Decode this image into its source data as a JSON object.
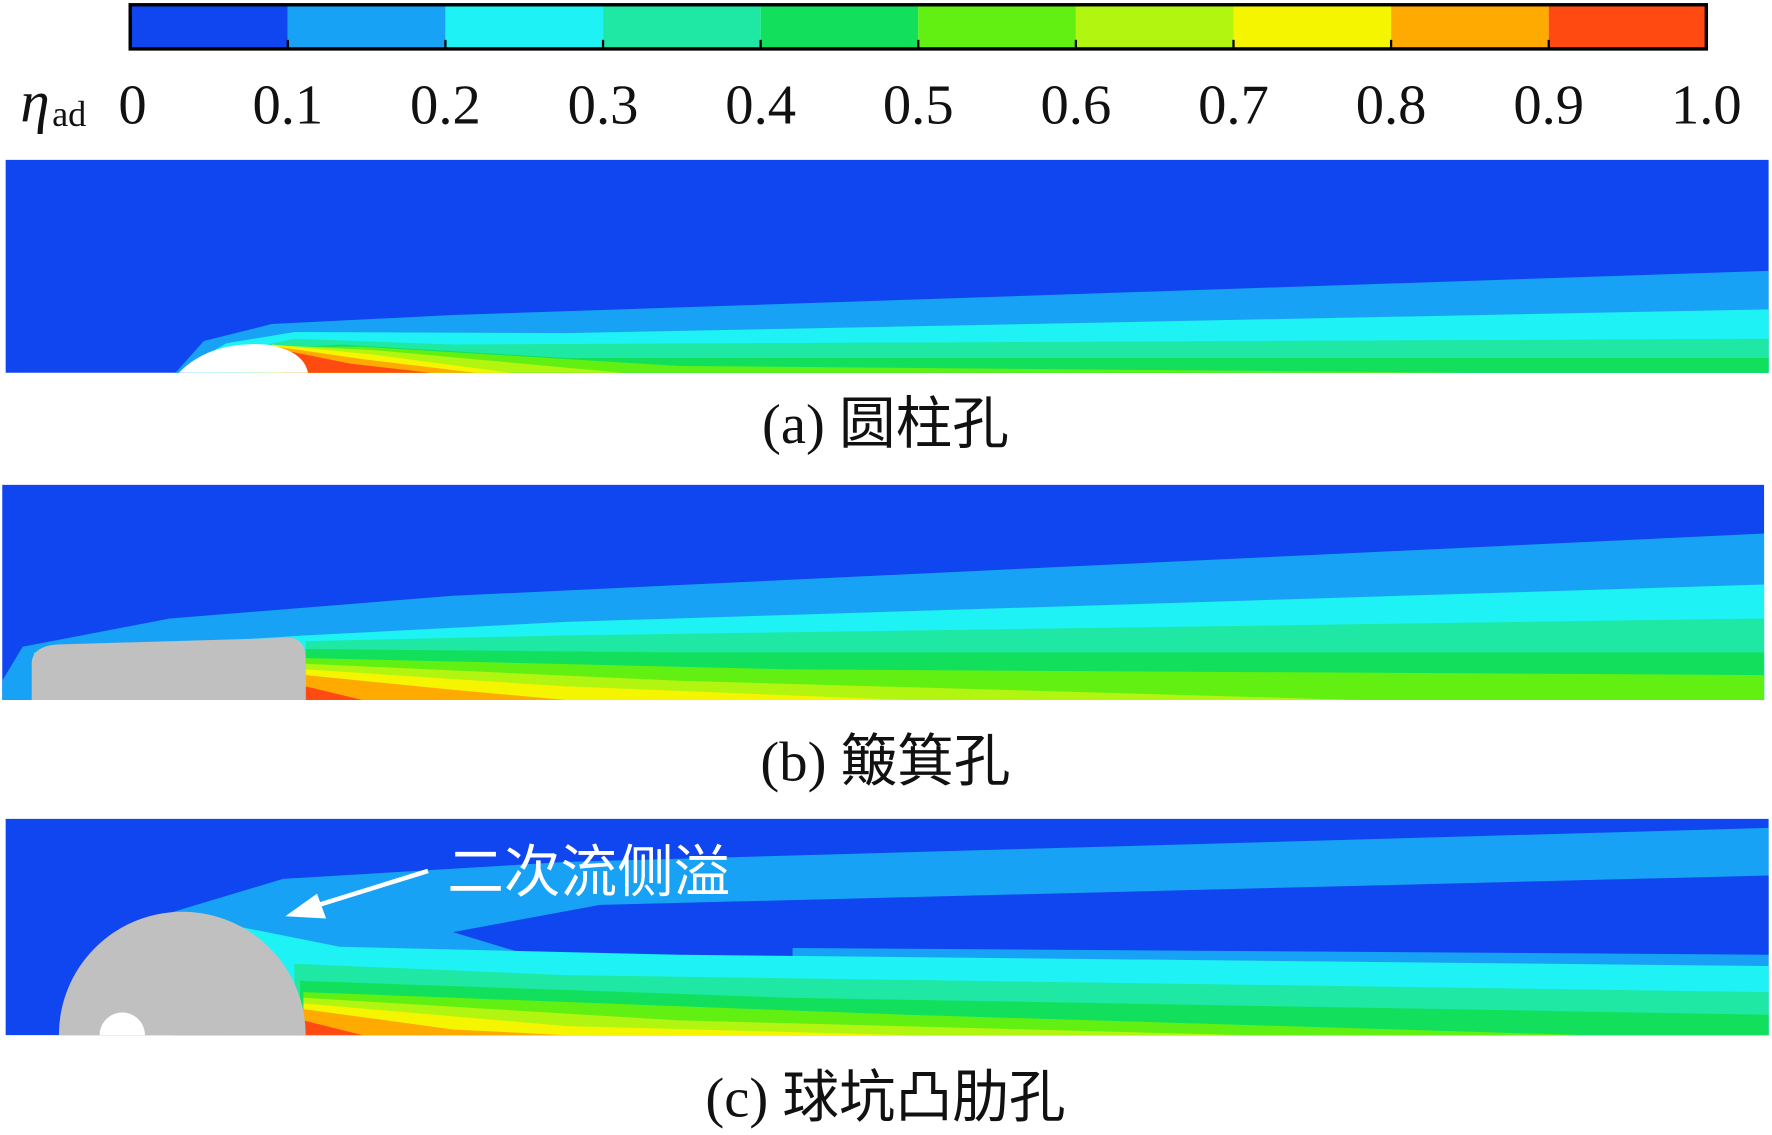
{
  "colorbar": {
    "symbol": "η",
    "subscript": "ad",
    "ticks": [
      0,
      0.1,
      0.2,
      0.3,
      0.4,
      0.5,
      0.6,
      0.7,
      0.8,
      0.9,
      {
        "value": 1,
        "label": "1.0"
      }
    ],
    "colors": [
      "#1046f0",
      "#18a2f5",
      "#1ef2f5",
      "#1ee8a4",
      "#12e05c",
      "#62f012",
      "#b2f510",
      "#f5f500",
      "#ffaa00",
      "#ff4a12"
    ]
  },
  "panels": [
    {
      "caption": "(a) 圆柱孔"
    },
    {
      "caption": "(b) 簸箕孔"
    },
    {
      "caption": "(c) 球坑凸肋孔",
      "annotation": "二次流侧溢"
    }
  ]
}
